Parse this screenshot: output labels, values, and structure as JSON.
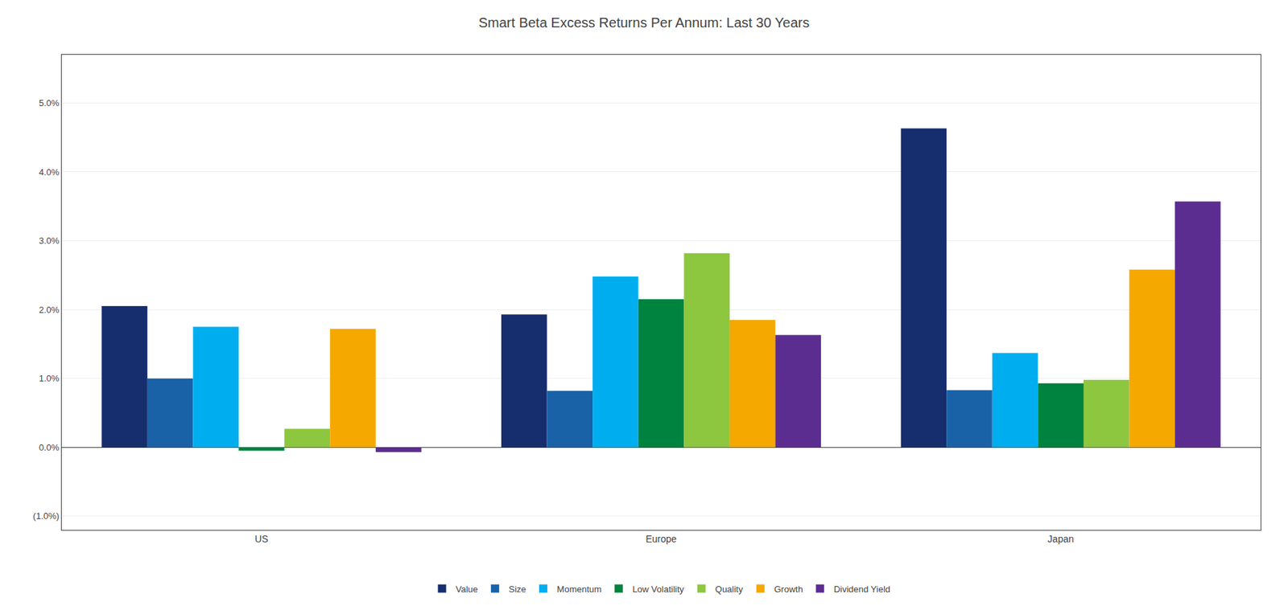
{
  "chart_data": {
    "type": "bar",
    "title": "Smart Beta Excess Returns Per Annum: Last 30 Years",
    "categories": [
      "US",
      "Europe",
      "Japan"
    ],
    "series": [
      {
        "name": "Value",
        "color": "#162d6e",
        "values": [
          0.0205,
          0.0193,
          0.0463
        ]
      },
      {
        "name": "Size",
        "color": "#1a62a8",
        "values": [
          0.01,
          0.0082,
          0.0083
        ]
      },
      {
        "name": "Momentum",
        "color": "#00aeef",
        "values": [
          0.0175,
          0.0248,
          0.0137
        ]
      },
      {
        "name": "Low Volatility",
        "color": "#00833e",
        "values": [
          -0.0005,
          0.0215,
          0.0093
        ]
      },
      {
        "name": "Quality",
        "color": "#8dc63f",
        "values": [
          0.0027,
          0.0282,
          0.0098
        ]
      },
      {
        "name": "Growth",
        "color": "#f5a800",
        "values": [
          0.0172,
          0.0185,
          0.0258
        ]
      },
      {
        "name": "Dividend Yield",
        "color": "#5c2d91",
        "values": [
          -0.0007,
          0.0163,
          0.0357
        ]
      }
    ],
    "ylim": [
      -0.012,
      0.057
    ],
    "yticks": [
      {
        "value": -0.01,
        "label": "(1.0%)"
      },
      {
        "value": 0.0,
        "label": "0.0%"
      },
      {
        "value": 0.01,
        "label": "1.0%"
      },
      {
        "value": 0.02,
        "label": "2.0%"
      },
      {
        "value": 0.03,
        "label": "3.0%"
      },
      {
        "value": 0.04,
        "label": "4.0%"
      },
      {
        "value": 0.05,
        "label": "5.0%"
      }
    ],
    "grid": true,
    "legend": "bottom"
  }
}
